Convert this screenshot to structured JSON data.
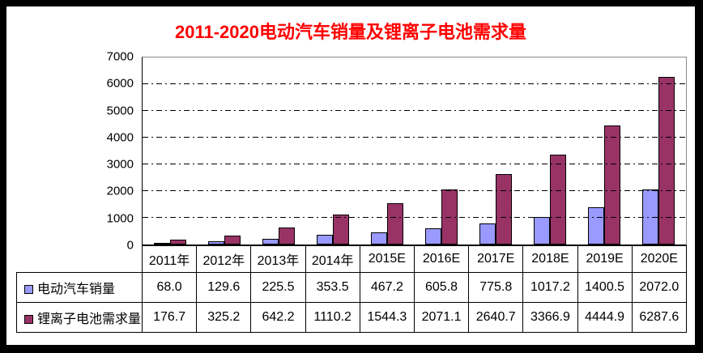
{
  "title_color": "#FF0000",
  "chart_data": {
    "type": "bar",
    "title": "2011-2020电动汽车销量及锂离子电池需求量",
    "categories": [
      "2011年",
      "2012年",
      "2013年",
      "2014年",
      "2015E",
      "2016E",
      "2017E",
      "2018E",
      "2019E",
      "2020E"
    ],
    "series": [
      {
        "name": "电动汽车销量",
        "color": "#9999FF",
        "values": [
          68.0,
          129.6,
          225.5,
          353.5,
          467.2,
          605.8,
          775.8,
          1017.2,
          1400.5,
          2072.0
        ]
      },
      {
        "name": "锂离子电池需求量",
        "color": "#993366",
        "values": [
          176.7,
          325.2,
          642.2,
          1110.2,
          1544.3,
          2071.1,
          2640.7,
          3366.9,
          4444.9,
          6287.6
        ]
      }
    ],
    "xlabel": "",
    "ylabel": "",
    "ylim": [
      0,
      7000
    ],
    "ytick_interval": 1000,
    "value_decimals": 1,
    "grid": "horizontal dash-dot",
    "legend_position": "data-table-left",
    "bar_border_color": "#000000"
  }
}
